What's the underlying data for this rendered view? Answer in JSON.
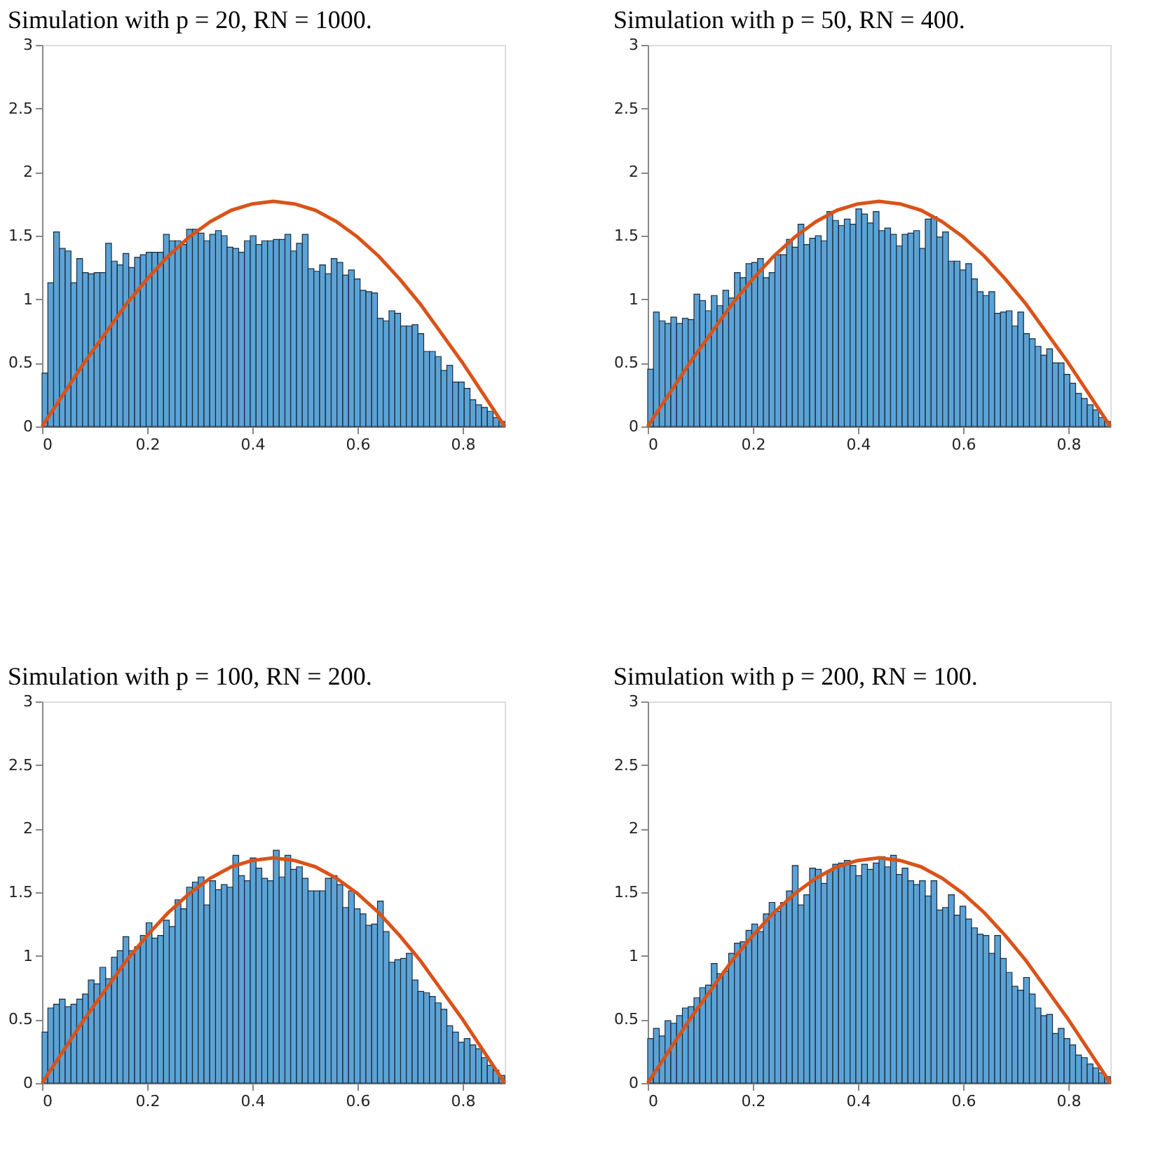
{
  "chart_data": [
    {
      "type": "histogram",
      "title": "Simulation with p = 20, RN = 1000.",
      "color": "#5ba3d6",
      "bins": [
        0,
        0.011,
        0.022,
        0.033,
        0.044,
        0.055,
        0.066,
        0.077,
        0.088,
        0.099,
        0.11,
        0.121,
        0.132,
        0.143,
        0.154,
        0.165,
        0.176,
        0.187,
        0.198,
        0.209,
        0.22,
        0.231,
        0.242,
        0.253,
        0.264,
        0.275,
        0.286,
        0.297,
        0.308,
        0.319,
        0.33,
        0.341,
        0.352,
        0.363,
        0.374,
        0.385,
        0.396,
        0.407,
        0.418,
        0.429,
        0.44,
        0.451,
        0.462,
        0.473,
        0.484,
        0.495,
        0.506,
        0.517,
        0.528,
        0.539,
        0.55,
        0.561,
        0.572,
        0.583,
        0.594,
        0.605,
        0.616,
        0.627,
        0.638,
        0.649,
        0.66,
        0.671,
        0.682,
        0.693,
        0.704,
        0.715,
        0.726,
        0.737,
        0.748,
        0.759,
        0.77,
        0.781,
        0.792,
        0.803,
        0.814,
        0.825,
        0.836,
        0.847,
        0.858,
        0.869,
        0.88
      ],
      "values": [
        0.42,
        1.13,
        1.53,
        1.4,
        1.38,
        1.13,
        1.32,
        1.21,
        1.2,
        1.21,
        1.21,
        1.44,
        1.3,
        1.27,
        1.36,
        1.25,
        1.33,
        1.35,
        1.37,
        1.37,
        1.37,
        1.51,
        1.46,
        1.46,
        1.43,
        1.55,
        1.55,
        1.52,
        1.46,
        1.51,
        1.54,
        1.5,
        1.41,
        1.4,
        1.37,
        1.46,
        1.5,
        1.43,
        1.46,
        1.46,
        1.47,
        1.47,
        1.51,
        1.38,
        1.44,
        1.51,
        1.24,
        1.22,
        1.27,
        1.2,
        1.32,
        1.29,
        1.19,
        1.23,
        1.16,
        1.07,
        1.06,
        1.05,
        0.85,
        0.83,
        0.91,
        0.89,
        0.79,
        0.79,
        0.8,
        0.73,
        0.59,
        0.59,
        0.55,
        0.44,
        0.48,
        0.35,
        0.35,
        0.3,
        0.21,
        0.17,
        0.15,
        0.12,
        0.07,
        0.04
      ],
      "series": [
        {
          "type": "line",
          "color": "#d95319",
          "x": [
            0,
            0.04,
            0.08,
            0.12,
            0.16,
            0.2,
            0.24,
            0.28,
            0.32,
            0.36,
            0.4,
            0.44,
            0.48,
            0.52,
            0.56,
            0.6,
            0.64,
            0.68,
            0.72,
            0.76,
            0.8,
            0.84,
            0.88
          ],
          "values": [
            0,
            0.25,
            0.5,
            0.73,
            0.96,
            1.16,
            1.34,
            1.49,
            1.61,
            1.7,
            1.75,
            1.77,
            1.75,
            1.7,
            1.61,
            1.49,
            1.34,
            1.16,
            0.96,
            0.73,
            0.5,
            0.25,
            0
          ]
        }
      ],
      "xlim": [
        0,
        0.88
      ],
      "xticks": [
        0,
        0.2,
        0.4,
        0.6,
        0.8
      ],
      "ylim": [
        0,
        3
      ],
      "yticks": [
        0,
        0.5,
        1,
        1.5,
        2,
        2.5,
        3
      ]
    },
    {
      "type": "histogram",
      "title": "Simulation with p = 50, RN = 400.",
      "color": "#5ba3d6",
      "bins": [
        0,
        0.011,
        0.022,
        0.033,
        0.044,
        0.055,
        0.066,
        0.077,
        0.088,
        0.099,
        0.11,
        0.121,
        0.132,
        0.143,
        0.154,
        0.165,
        0.176,
        0.187,
        0.198,
        0.209,
        0.22,
        0.231,
        0.242,
        0.253,
        0.264,
        0.275,
        0.286,
        0.297,
        0.308,
        0.319,
        0.33,
        0.341,
        0.352,
        0.363,
        0.374,
        0.385,
        0.396,
        0.407,
        0.418,
        0.429,
        0.44,
        0.451,
        0.462,
        0.473,
        0.484,
        0.495,
        0.506,
        0.517,
        0.528,
        0.539,
        0.55,
        0.561,
        0.572,
        0.583,
        0.594,
        0.605,
        0.616,
        0.627,
        0.638,
        0.649,
        0.66,
        0.671,
        0.682,
        0.693,
        0.704,
        0.715,
        0.726,
        0.737,
        0.748,
        0.759,
        0.77,
        0.781,
        0.792,
        0.803,
        0.814,
        0.825,
        0.836,
        0.847,
        0.858,
        0.869,
        0.88
      ],
      "values": [
        0.45,
        0.9,
        0.83,
        0.81,
        0.86,
        0.81,
        0.85,
        0.84,
        1.04,
        0.99,
        0.91,
        1.03,
        0.95,
        1.07,
        1.01,
        1.21,
        1.17,
        1.28,
        1.29,
        1.32,
        1.17,
        1.21,
        1.35,
        1.35,
        1.47,
        1.41,
        1.59,
        1.43,
        1.48,
        1.5,
        1.46,
        1.69,
        1.62,
        1.58,
        1.63,
        1.59,
        1.71,
        1.67,
        1.6,
        1.69,
        1.54,
        1.56,
        1.51,
        1.42,
        1.51,
        1.52,
        1.54,
        1.4,
        1.63,
        1.65,
        1.49,
        1.53,
        1.3,
        1.3,
        1.23,
        1.28,
        1.16,
        1.06,
        1.03,
        1.06,
        0.89,
        0.9,
        0.91,
        0.79,
        0.9,
        0.73,
        0.69,
        0.63,
        0.56,
        0.61,
        0.5,
        0.5,
        0.41,
        0.34,
        0.26,
        0.22,
        0.17,
        0.13,
        0.07,
        0.04
      ],
      "series": [
        {
          "type": "line",
          "color": "#d95319",
          "x": [
            0,
            0.04,
            0.08,
            0.12,
            0.16,
            0.2,
            0.24,
            0.28,
            0.32,
            0.36,
            0.4,
            0.44,
            0.48,
            0.52,
            0.56,
            0.6,
            0.64,
            0.68,
            0.72,
            0.76,
            0.8,
            0.84,
            0.88
          ],
          "values": [
            0,
            0.25,
            0.5,
            0.73,
            0.96,
            1.16,
            1.34,
            1.49,
            1.61,
            1.7,
            1.75,
            1.77,
            1.75,
            1.7,
            1.61,
            1.49,
            1.34,
            1.16,
            0.96,
            0.73,
            0.5,
            0.25,
            0
          ]
        }
      ],
      "xlim": [
        0,
        0.88
      ],
      "xticks": [
        0,
        0.2,
        0.4,
        0.6,
        0.8
      ],
      "ylim": [
        0,
        3
      ],
      "yticks": [
        0,
        0.5,
        1,
        1.5,
        2,
        2.5,
        3
      ]
    },
    {
      "type": "histogram",
      "title": "Simulation with p = 100, RN = 200.",
      "color": "#5ba3d6",
      "bins": [
        0,
        0.011,
        0.022,
        0.033,
        0.044,
        0.055,
        0.066,
        0.077,
        0.088,
        0.099,
        0.11,
        0.121,
        0.132,
        0.143,
        0.154,
        0.165,
        0.176,
        0.187,
        0.198,
        0.209,
        0.22,
        0.231,
        0.242,
        0.253,
        0.264,
        0.275,
        0.286,
        0.297,
        0.308,
        0.319,
        0.33,
        0.341,
        0.352,
        0.363,
        0.374,
        0.385,
        0.396,
        0.407,
        0.418,
        0.429,
        0.44,
        0.451,
        0.462,
        0.473,
        0.484,
        0.495,
        0.506,
        0.517,
        0.528,
        0.539,
        0.55,
        0.561,
        0.572,
        0.583,
        0.594,
        0.605,
        0.616,
        0.627,
        0.638,
        0.649,
        0.66,
        0.671,
        0.682,
        0.693,
        0.704,
        0.715,
        0.726,
        0.737,
        0.748,
        0.759,
        0.77,
        0.781,
        0.792,
        0.803,
        0.814,
        0.825,
        0.836,
        0.847,
        0.858,
        0.869,
        0.88
      ],
      "values": [
        0.4,
        0.59,
        0.62,
        0.66,
        0.6,
        0.62,
        0.66,
        0.7,
        0.81,
        0.78,
        0.91,
        0.82,
        0.99,
        1.04,
        1.15,
        1.04,
        1.07,
        1.16,
        1.26,
        1.14,
        1.16,
        1.28,
        1.23,
        1.44,
        1.37,
        1.54,
        1.58,
        1.62,
        1.4,
        1.59,
        1.52,
        1.56,
        1.54,
        1.79,
        1.63,
        1.59,
        1.77,
        1.69,
        1.61,
        1.59,
        1.83,
        1.62,
        1.79,
        1.68,
        1.7,
        1.61,
        1.51,
        1.51,
        1.51,
        1.61,
        1.63,
        1.56,
        1.38,
        1.51,
        1.37,
        1.33,
        1.24,
        1.25,
        1.43,
        1.19,
        0.95,
        0.97,
        0.98,
        1.02,
        0.81,
        0.72,
        0.71,
        0.68,
        0.63,
        0.58,
        0.45,
        0.4,
        0.32,
        0.35,
        0.3,
        0.27,
        0.2,
        0.14,
        0.1,
        0.06
      ],
      "series": [
        {
          "type": "line",
          "color": "#d95319",
          "x": [
            0,
            0.04,
            0.08,
            0.12,
            0.16,
            0.2,
            0.24,
            0.28,
            0.32,
            0.36,
            0.4,
            0.44,
            0.48,
            0.52,
            0.56,
            0.6,
            0.64,
            0.68,
            0.72,
            0.76,
            0.8,
            0.84,
            0.88
          ],
          "values": [
            0,
            0.25,
            0.5,
            0.73,
            0.96,
            1.16,
            1.34,
            1.49,
            1.61,
            1.7,
            1.75,
            1.77,
            1.75,
            1.7,
            1.61,
            1.49,
            1.34,
            1.16,
            0.96,
            0.73,
            0.5,
            0.25,
            0
          ]
        }
      ],
      "xlim": [
        0,
        0.88
      ],
      "xticks": [
        0,
        0.2,
        0.4,
        0.6,
        0.8
      ],
      "ylim": [
        0,
        3
      ],
      "yticks": [
        0,
        0.5,
        1,
        1.5,
        2,
        2.5,
        3
      ]
    },
    {
      "type": "histogram",
      "title": "Simulation with p = 200, RN = 100.",
      "color": "#5ba3d6",
      "bins": [
        0,
        0.011,
        0.022,
        0.033,
        0.044,
        0.055,
        0.066,
        0.077,
        0.088,
        0.099,
        0.11,
        0.121,
        0.132,
        0.143,
        0.154,
        0.165,
        0.176,
        0.187,
        0.198,
        0.209,
        0.22,
        0.231,
        0.242,
        0.253,
        0.264,
        0.275,
        0.286,
        0.297,
        0.308,
        0.319,
        0.33,
        0.341,
        0.352,
        0.363,
        0.374,
        0.385,
        0.396,
        0.407,
        0.418,
        0.429,
        0.44,
        0.451,
        0.462,
        0.473,
        0.484,
        0.495,
        0.506,
        0.517,
        0.528,
        0.539,
        0.55,
        0.561,
        0.572,
        0.583,
        0.594,
        0.605,
        0.616,
        0.627,
        0.638,
        0.649,
        0.66,
        0.671,
        0.682,
        0.693,
        0.704,
        0.715,
        0.726,
        0.737,
        0.748,
        0.759,
        0.77,
        0.781,
        0.792,
        0.803,
        0.814,
        0.825,
        0.836,
        0.847,
        0.858,
        0.869,
        0.88
      ],
      "values": [
        0.35,
        0.43,
        0.37,
        0.49,
        0.47,
        0.53,
        0.59,
        0.6,
        0.67,
        0.75,
        0.77,
        0.94,
        0.86,
        0.88,
        1.02,
        1.1,
        1.11,
        1.2,
        1.25,
        1.19,
        1.33,
        1.42,
        1.35,
        1.42,
        1.51,
        1.71,
        1.4,
        1.48,
        1.69,
        1.68,
        1.57,
        1.67,
        1.72,
        1.73,
        1.75,
        1.71,
        1.63,
        1.72,
        1.68,
        1.73,
        1.78,
        1.7,
        1.79,
        1.64,
        1.69,
        1.59,
        1.56,
        1.59,
        1.47,
        1.59,
        1.36,
        1.38,
        1.48,
        1.32,
        1.39,
        1.29,
        1.22,
        1.17,
        1.16,
        1.02,
        1.16,
        0.98,
        0.87,
        0.76,
        0.73,
        0.83,
        0.7,
        0.59,
        0.53,
        0.54,
        0.39,
        0.43,
        0.35,
        0.3,
        0.22,
        0.2,
        0.15,
        0.12,
        0.08,
        0.05
      ],
      "series": [
        {
          "type": "line",
          "color": "#d95319",
          "x": [
            0,
            0.04,
            0.08,
            0.12,
            0.16,
            0.2,
            0.24,
            0.28,
            0.32,
            0.36,
            0.4,
            0.44,
            0.48,
            0.52,
            0.56,
            0.6,
            0.64,
            0.68,
            0.72,
            0.76,
            0.8,
            0.84,
            0.88
          ],
          "values": [
            0,
            0.25,
            0.5,
            0.73,
            0.96,
            1.16,
            1.34,
            1.49,
            1.61,
            1.7,
            1.75,
            1.77,
            1.75,
            1.7,
            1.61,
            1.49,
            1.34,
            1.16,
            0.96,
            0.73,
            0.5,
            0.25,
            0
          ]
        }
      ],
      "xlim": [
        0,
        0.88
      ],
      "xticks": [
        0,
        0.2,
        0.4,
        0.6,
        0.8
      ],
      "ylim": [
        0,
        3
      ],
      "yticks": [
        0,
        0.5,
        1,
        1.5,
        2,
        2.5,
        3
      ]
    }
  ]
}
